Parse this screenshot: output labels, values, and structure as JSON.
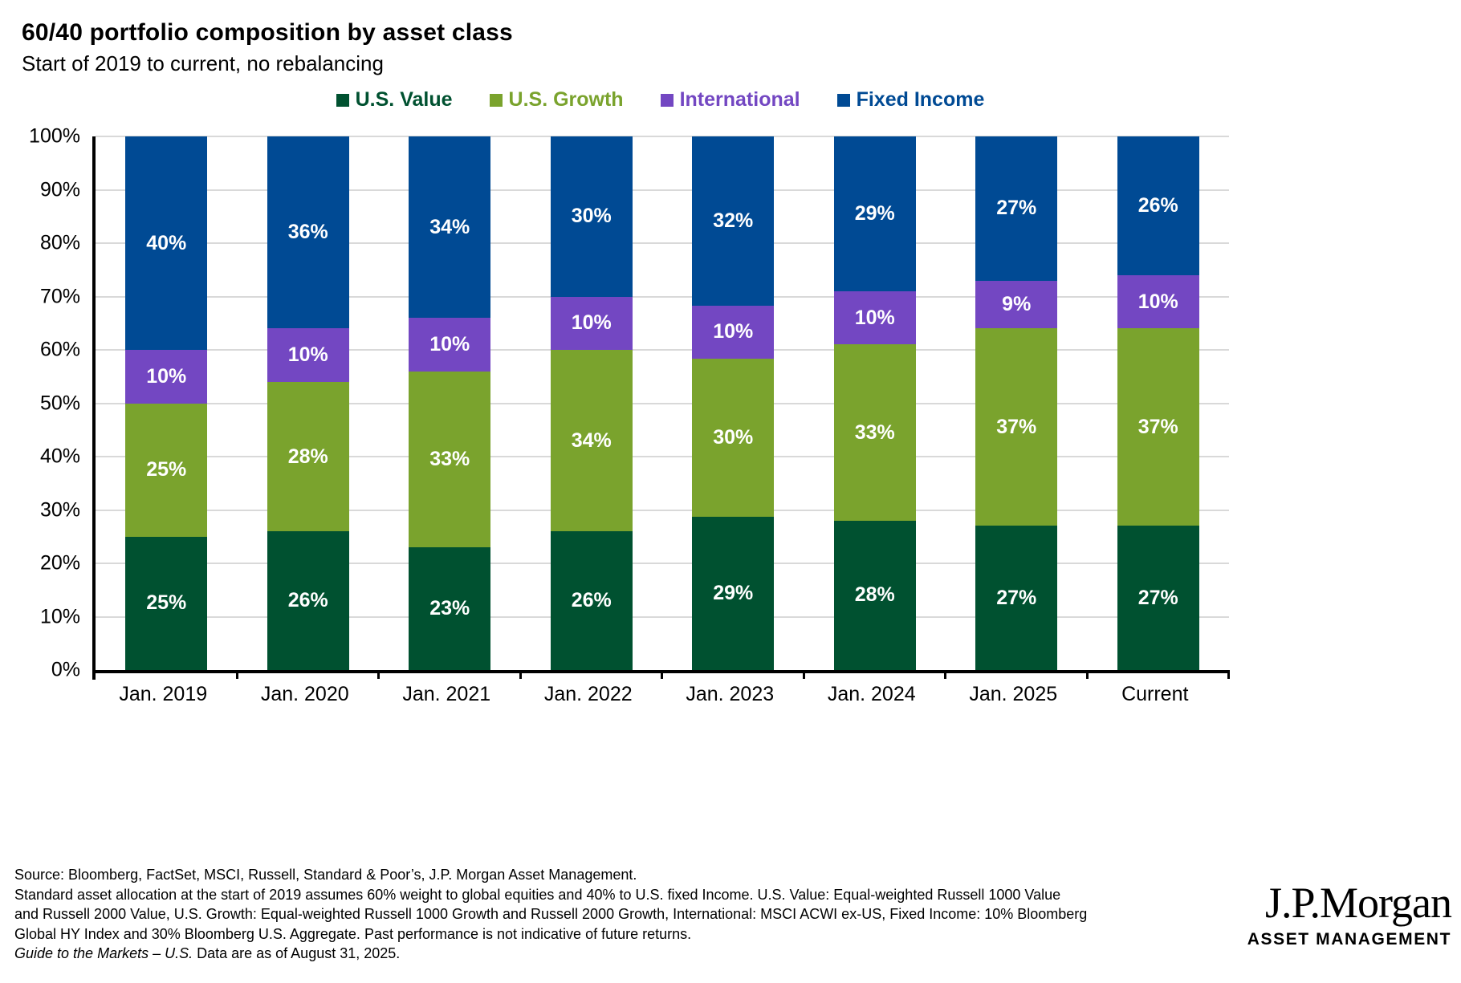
{
  "title": "60/40 portfolio composition by asset class",
  "subtitle": "Start of 2019 to current, no rebalancing",
  "chart_data": {
    "type": "bar",
    "stacked": true,
    "title": "60/40 portfolio composition by asset class",
    "subtitle": "Start of 2019 to current, no rebalancing",
    "categories": [
      "Jan. 2019",
      "Jan. 2020",
      "Jan. 2021",
      "Jan. 2022",
      "Jan. 2023",
      "Jan. 2024",
      "Jan. 2025",
      "Current"
    ],
    "series": [
      {
        "name": "U.S. Value",
        "color": "#005130",
        "values": [
          25,
          26,
          23,
          26,
          29,
          28,
          27,
          27
        ],
        "labels": [
          "25%",
          "26%",
          "23%",
          "26%",
          "29%",
          "28%",
          "27%",
          "27%"
        ]
      },
      {
        "name": "U.S. Growth",
        "color": "#7aa32d",
        "values": [
          25,
          28,
          33,
          34,
          30,
          33,
          37,
          37
        ],
        "labels": [
          "25%",
          "28%",
          "33%",
          "34%",
          "30%",
          "33%",
          "37%",
          "37%"
        ]
      },
      {
        "name": "International",
        "color": "#7347c2",
        "values": [
          10,
          10,
          10,
          10,
          10,
          10,
          9,
          10
        ],
        "labels": [
          "10%",
          "10%",
          "10%",
          "10%",
          "10%",
          "10%",
          "9%",
          "10%"
        ]
      },
      {
        "name": "Fixed Income",
        "color": "#004a94",
        "values": [
          40,
          36,
          34,
          30,
          32,
          29,
          27,
          26
        ],
        "labels": [
          "40%",
          "36%",
          "34%",
          "30%",
          "32%",
          "29%",
          "27%",
          "26%"
        ]
      }
    ],
    "ylim": [
      0,
      100
    ],
    "ytick_labels": [
      "0%",
      "10%",
      "20%",
      "30%",
      "40%",
      "50%",
      "60%",
      "70%",
      "80%",
      "90%",
      "100%"
    ],
    "grid": true,
    "gridline_color": "#d9d9d9",
    "axis_color": "#000000",
    "legend_position": "top",
    "data_label_color": "#ffffff"
  },
  "footer": {
    "lines": [
      "Source: Bloomberg, FactSet, MSCI, Russell, Standard & Poor’s, J.P. Morgan Asset Management.",
      "Standard asset allocation at the start of 2019 assumes 60% weight to global equities and 40% to U.S. fixed Income. U.S. Value: Equal-weighted Russell 1000 Value",
      "and Russell 2000 Value, U.S. Growth: Equal-weighted Russell 1000 Growth and Russell 2000 Growth, International: MSCI ACWI ex-US, Fixed Income: 10% Bloomberg",
      "Global HY Index and 30% Bloomberg U.S. Aggregate. Past performance is not indicative of future returns."
    ],
    "gtm_italic": "Guide to the Markets – U.S.",
    "gtm_rest": " Data are as of August 31, 2025."
  },
  "logo": {
    "wordmark": "J.P.Morgan",
    "subtext": "ASSET MANAGEMENT"
  }
}
